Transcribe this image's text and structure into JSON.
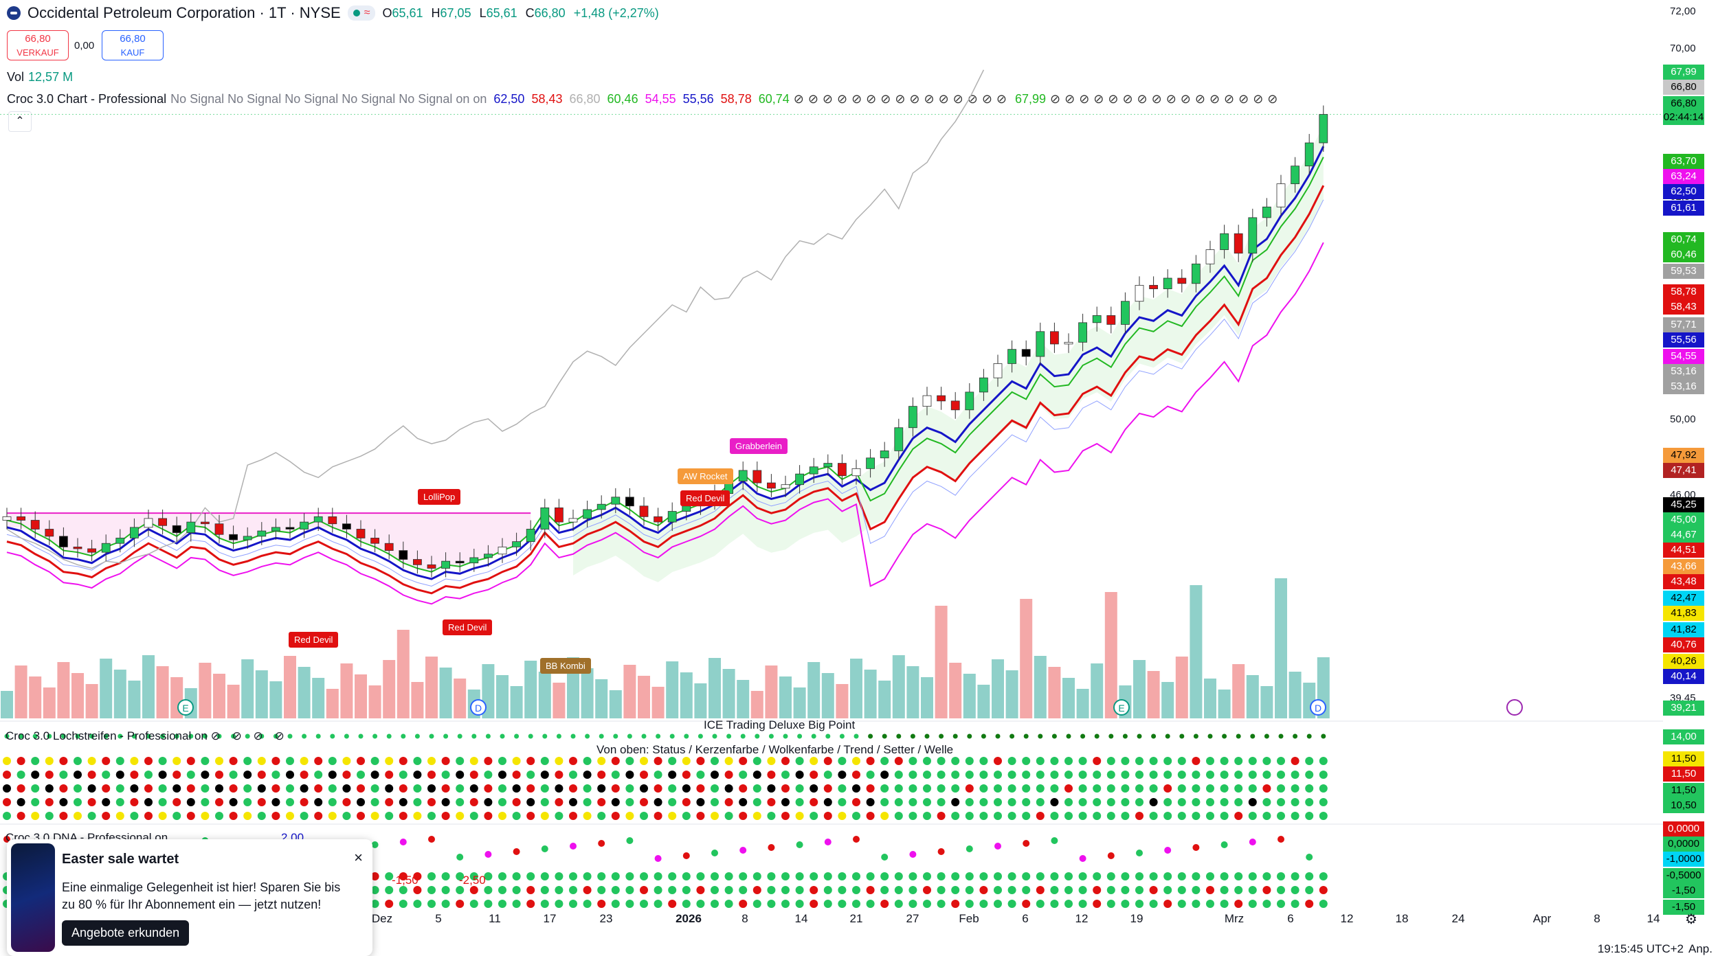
{
  "header": {
    "symbol_title": "Occidental Petroleum Corporation · 1T · NYSE",
    "o_label": "O",
    "o_value": "65,61",
    "h_label": "H",
    "h_value": "67,05",
    "l_label": "L",
    "l_value": "65,61",
    "c_label": "C",
    "c_value": "66,80",
    "change": "+1,48 (+2,27%)"
  },
  "trade": {
    "sell_price": "66,80",
    "sell_label": "VERKAUF",
    "spread": "0,00",
    "buy_price": "66,80",
    "buy_label": "KAUF"
  },
  "volume": {
    "label": "Vol",
    "value": "12,57 M"
  },
  "indicator_line": {
    "name": "Croc 3.0 Chart - Professional",
    "signals": "No Signal No Signal No Signal No Signal No Signal on on",
    "values": [
      {
        "text": "62,50",
        "color": "#1515c8"
      },
      {
        "text": "58,43",
        "color": "#e01010"
      },
      {
        "text": "66,80",
        "color": "#b0b0b0"
      },
      {
        "text": "60,46",
        "color": "#22b822"
      },
      {
        "text": "54,55",
        "color": "#ee10ee"
      },
      {
        "text": "55,56",
        "color": "#1515c8"
      },
      {
        "text": "58,78",
        "color": "#e01010"
      },
      {
        "text": "60,74",
        "color": "#22b822"
      }
    ],
    "tail_value": "67,99"
  },
  "panes": {
    "lochstreifen": "Croc 3.0 Lochstreifen - Professional on",
    "ice_title": "ICE Trading Deluxe Big Point",
    "ice_subtitle": "Von oben: Status / Kerzenfarbe / Wolkenfarbe / Trend / Setter / Welle",
    "dna": "Croc 3.0 DNA - Professional on",
    "dna_values": [
      "2,00",
      "-1,50",
      "-2,50"
    ]
  },
  "signals": [
    {
      "text": "LolliPop",
      "color": "#e01010"
    },
    {
      "text": "Red Devil",
      "color": "#e01010"
    },
    {
      "text": "Red Devil",
      "color": "#e01010"
    },
    {
      "text": "AW Rocket",
      "color": "#f59a3a"
    },
    {
      "text": "Red Devil",
      "color": "#e01010"
    },
    {
      "text": "Grabberlein",
      "color": "#e91ec7"
    },
    {
      "text": "BB Kombi",
      "color": "#a0702a"
    }
  ],
  "price_axis": {
    "plain_labels": [
      "72,00",
      "70,00",
      "62,50",
      "50,00",
      "46,00",
      "39,45"
    ],
    "tags": [
      {
        "text": "67,99",
        "bg": "#22c55e",
        "fg": "#ffffff"
      },
      {
        "text": "66,80",
        "bg": "#c8c8c8",
        "fg": "#000000"
      },
      {
        "text": "66,80",
        "bg": "#22c55e",
        "fg": "#000000"
      },
      {
        "text": "02:44:14",
        "bg": "#22c55e",
        "fg": "#000000"
      },
      {
        "text": "63,70",
        "bg": "#22b822",
        "fg": "#ffffff"
      },
      {
        "text": "63,24",
        "bg": "#ee10ee",
        "fg": "#ffffff"
      },
      {
        "text": "62,50",
        "bg": "#1515c8",
        "fg": "#ffffff"
      },
      {
        "text": "61,61",
        "bg": "#1515c8",
        "fg": "#ffffff"
      },
      {
        "text": "60,74",
        "bg": "#22b822",
        "fg": "#ffffff"
      },
      {
        "text": "60,46",
        "bg": "#22b822",
        "fg": "#ffffff"
      },
      {
        "text": "59,53",
        "bg": "#a0a0a0",
        "fg": "#ffffff"
      },
      {
        "text": "58,78",
        "bg": "#e01010",
        "fg": "#ffffff"
      },
      {
        "text": "58,43",
        "bg": "#e01010",
        "fg": "#ffffff"
      },
      {
        "text": "57,71",
        "bg": "#a0a0a0",
        "fg": "#ffffff"
      },
      {
        "text": "55,56",
        "bg": "#1515c8",
        "fg": "#ffffff"
      },
      {
        "text": "54,55",
        "bg": "#ee10ee",
        "fg": "#ffffff"
      },
      {
        "text": "53,16",
        "bg": "#a0a0a0",
        "fg": "#ffffff"
      },
      {
        "text": "53,16",
        "bg": "#a0a0a0",
        "fg": "#ffffff"
      },
      {
        "text": "47,92",
        "bg": "#f59a3a",
        "fg": "#000000"
      },
      {
        "text": "47,41",
        "bg": "#b22222",
        "fg": "#ffffff"
      },
      {
        "text": "45,25",
        "bg": "#000000",
        "fg": "#ffffff"
      },
      {
        "text": "45,00",
        "bg": "#22c55e",
        "fg": "#ffffff"
      },
      {
        "text": "44,67",
        "bg": "#22c55e",
        "fg": "#ffffff"
      },
      {
        "text": "44,51",
        "bg": "#e01010",
        "fg": "#ffffff"
      },
      {
        "text": "43,66",
        "bg": "#f59a3a",
        "fg": "#ffffff"
      },
      {
        "text": "43,48",
        "bg": "#e01010",
        "fg": "#ffffff"
      },
      {
        "text": "42,47",
        "bg": "#00d5f5",
        "fg": "#000000"
      },
      {
        "text": "41,83",
        "bg": "#f5e500",
        "fg": "#000000"
      },
      {
        "text": "41,82",
        "bg": "#00d5f5",
        "fg": "#000000"
      },
      {
        "text": "40,76",
        "bg": "#e01010",
        "fg": "#ffffff"
      },
      {
        "text": "40,26",
        "bg": "#f5e500",
        "fg": "#000000"
      },
      {
        "text": "40,14",
        "bg": "#1515c8",
        "fg": "#ffffff"
      },
      {
        "text": "39,21",
        "bg": "#22c55e",
        "fg": "#ffffff"
      },
      {
        "text": "14,00",
        "bg": "#22c55e",
        "fg": "#ffffff"
      },
      {
        "text": "11,50",
        "bg": "#f5e500",
        "fg": "#000000"
      },
      {
        "text": "11,50",
        "bg": "#e01010",
        "fg": "#ffffff"
      },
      {
        "text": "11,50",
        "bg": "#22c55e",
        "fg": "#000000"
      },
      {
        "text": "10,50",
        "bg": "#22c55e",
        "fg": "#000000"
      },
      {
        "text": "0,0000",
        "bg": "#e01010",
        "fg": "#ffffff"
      },
      {
        "text": "0,0000",
        "bg": "#22c55e",
        "fg": "#000000"
      },
      {
        "text": "-1,0000",
        "bg": "#00d5f5",
        "fg": "#000000"
      },
      {
        "text": "-0,5000",
        "bg": "#22c55e",
        "fg": "#000000"
      },
      {
        "text": "-1,50",
        "bg": "#22c55e",
        "fg": "#000000"
      },
      {
        "text": "-1,50",
        "bg": "#22c55e",
        "fg": "#000000"
      }
    ]
  },
  "time_axis": [
    "Dez",
    "5",
    "11",
    "17",
    "23",
    "2026",
    "8",
    "14",
    "21",
    "27",
    "Feb",
    "6",
    "12",
    "19",
    "Mrz",
    "6",
    "12",
    "18",
    "24",
    "Apr",
    "8",
    "14"
  ],
  "event_markers": [
    "E",
    "D",
    "E",
    "D"
  ],
  "status_bar": {
    "time": "19:15:45 UTC+2",
    "adjust": "Anp."
  },
  "popup": {
    "title": "Easter sale wartet",
    "message": "Eine einmalige Gelegenheit ist hier! Sparen Sie bis zu 80 % für Ihr Abonnement ein — jetzt nutzen!",
    "button": "Angebote erkunden",
    "close": "×"
  },
  "colors": {
    "up": "#22c55e",
    "down": "#e01010",
    "blue": "#1515c8",
    "red": "#e01010",
    "green": "#22b822",
    "magenta": "#ee10ee",
    "vol_up": "#8fd0c9",
    "vol_down": "#f4a8a8"
  },
  "chart_data": {
    "type": "candlestick",
    "note_series": "Daily OHLC approximated from visible candles",
    "closes": [
      44.2,
      44.0,
      43.5,
      43.1,
      42.5,
      42.4,
      42.2,
      42.7,
      43.0,
      43.6,
      44.1,
      43.7,
      43.3,
      43.9,
      43.8,
      43.2,
      42.9,
      43.1,
      43.4,
      43.6,
      43.5,
      43.9,
      44.2,
      43.8,
      43.5,
      43.0,
      42.7,
      42.3,
      41.8,
      41.5,
      41.3,
      41.7,
      41.6,
      41.9,
      42.1,
      42.5,
      42.8,
      43.5,
      44.7,
      43.9,
      44.1,
      44.6,
      44.9,
      45.3,
      44.8,
      44.2,
      43.9,
      44.5,
      44.8,
      45.1,
      45.5,
      46.2,
      46.8,
      46.1,
      45.8,
      46.0,
      46.6,
      47.0,
      47.2,
      46.5,
      46.9,
      47.5,
      47.9,
      49.2,
      50.4,
      51.0,
      50.7,
      50.2,
      51.2,
      52.0,
      52.8,
      53.6,
      53.2,
      54.6,
      53.9,
      54.0,
      55.1,
      55.5,
      55.0,
      56.3,
      57.2,
      57.0,
      57.6,
      57.3,
      58.4,
      59.2,
      60.1,
      59.0,
      61.0,
      61.6,
      62.9,
      63.9,
      65.2,
      66.8
    ]
  }
}
